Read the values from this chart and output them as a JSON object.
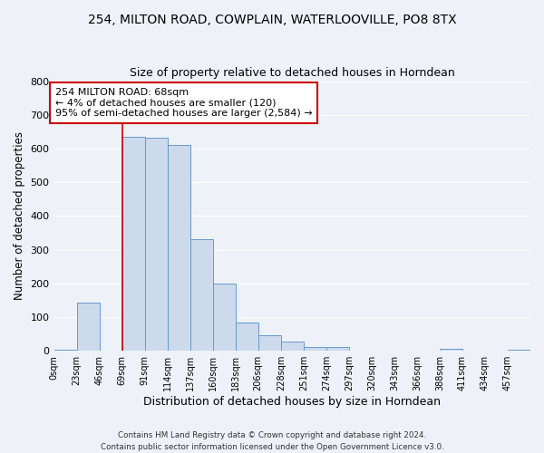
{
  "title": "254, MILTON ROAD, COWPLAIN, WATERLOOVILLE, PO8 8TX",
  "subtitle": "Size of property relative to detached houses in Horndean",
  "xlabel": "Distribution of detached houses by size in Horndean",
  "ylabel": "Number of detached properties",
  "bin_labels": [
    "0sqm",
    "23sqm",
    "46sqm",
    "69sqm",
    "91sqm",
    "114sqm",
    "137sqm",
    "160sqm",
    "183sqm",
    "206sqm",
    "228sqm",
    "251sqm",
    "274sqm",
    "297sqm",
    "320sqm",
    "343sqm",
    "366sqm",
    "388sqm",
    "411sqm",
    "434sqm",
    "457sqm"
  ],
  "bar_values": [
    2,
    143,
    0,
    635,
    633,
    610,
    332,
    200,
    83,
    46,
    27,
    12,
    12,
    0,
    0,
    0,
    0,
    5,
    0,
    0,
    2
  ],
  "bar_color": "#ccdaec",
  "bar_edge_color": "#6699cc",
  "vline_x": 3,
  "vline_color": "#cc0000",
  "annotation_title": "254 MILTON ROAD: 68sqm",
  "annotation_line1": "← 4% of detached houses are smaller (120)",
  "annotation_line2": "95% of semi-detached houses are larger (2,584) →",
  "annotation_box_facecolor": "#ffffff",
  "annotation_box_edgecolor": "#cc0000",
  "ylim": [
    0,
    800
  ],
  "yticks": [
    0,
    100,
    200,
    300,
    400,
    500,
    600,
    700,
    800
  ],
  "bg_color": "#eef2f8",
  "grid_color": "#ffffff",
  "title_fontsize": 10,
  "subtitle_fontsize": 9,
  "footer1": "Contains HM Land Registry data © Crown copyright and database right 2024.",
  "footer2": "Contains public sector information licensed under the Open Government Licence v3.0."
}
